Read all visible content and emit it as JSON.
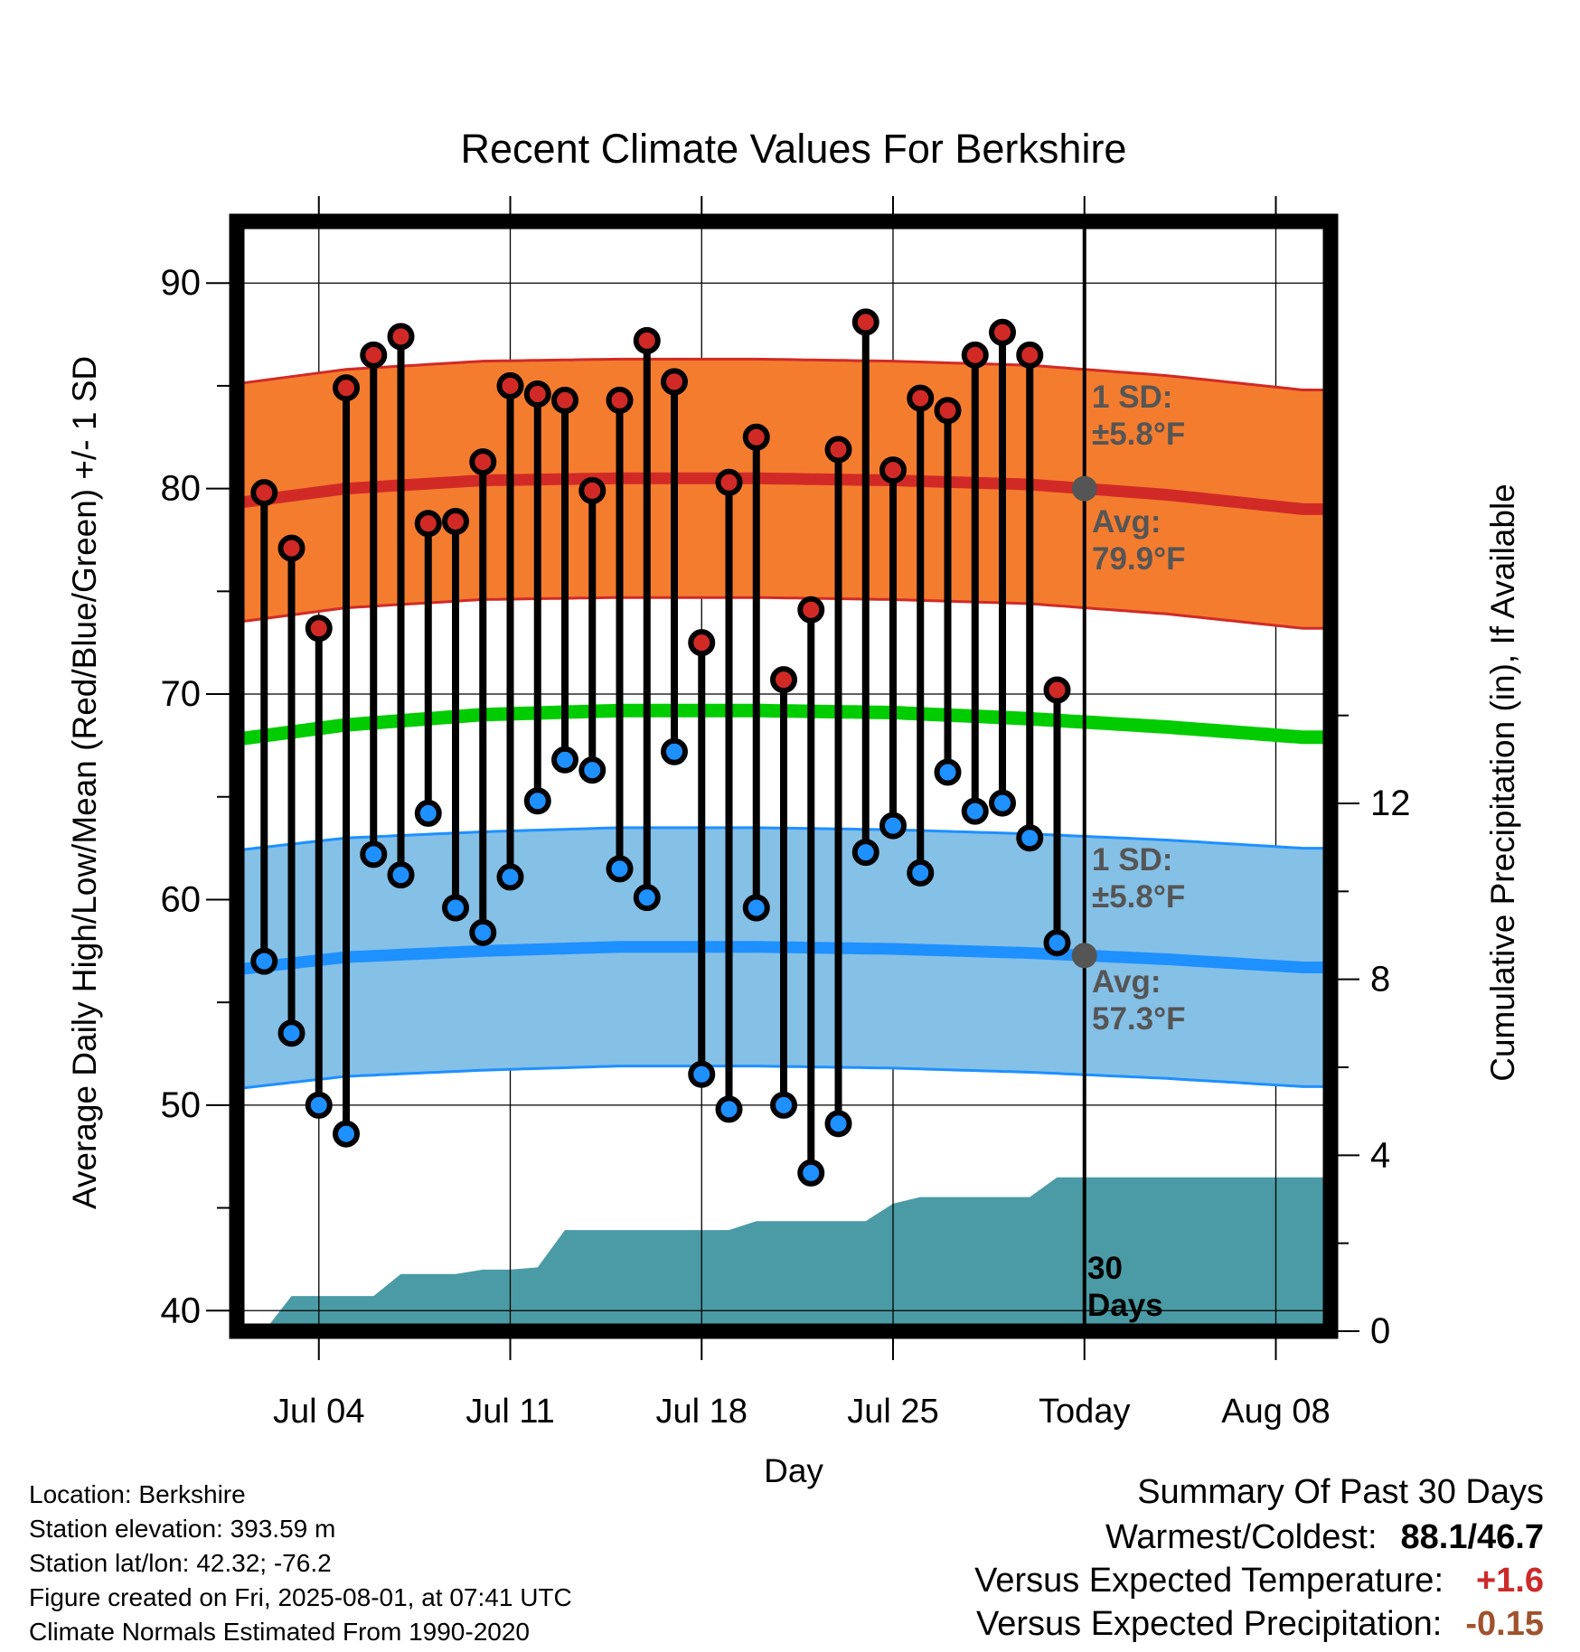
{
  "chart_data": {
    "type": "line",
    "title": "Recent Climate Values For Berkshire",
    "xlabel": "Day",
    "ylabel": "Average Daily High/Low/Mean (Red/Blue/Green) +/- 1 SD",
    "y2label": "Cumulative Precipitation (in), If Available",
    "ylim": [
      39,
      93
    ],
    "y2lim": [
      0,
      12
    ],
    "y_ticks": [
      "40",
      "50",
      "60",
      "70",
      "80",
      "90"
    ],
    "y2_ticks": [
      "0",
      "4",
      "8",
      "12"
    ],
    "x_tick_labels": [
      "Jul 04",
      "Jul 11",
      "Jul 18",
      "Jul 25",
      "Today",
      "Aug 08"
    ],
    "x_start_day": 2,
    "days": [
      2,
      3,
      4,
      5,
      6,
      7,
      8,
      9,
      10,
      11,
      12,
      13,
      14,
      15,
      16,
      17,
      18,
      19,
      20,
      21,
      22,
      23,
      24,
      25,
      26,
      27,
      28,
      29,
      30,
      31
    ],
    "daily_high": [
      79.8,
      77.1,
      73.2,
      84.9,
      86.5,
      87.4,
      78.3,
      78.4,
      81.3,
      85.0,
      84.6,
      84.3,
      79.9,
      84.3,
      87.2,
      85.2,
      72.5,
      80.3,
      82.5,
      70.7,
      74.1,
      81.9,
      88.1,
      80.9,
      84.4,
      83.8,
      86.5,
      87.6,
      86.5,
      70.2
    ],
    "daily_low": [
      57.0,
      53.5,
      50.0,
      48.6,
      62.2,
      61.2,
      64.2,
      59.6,
      58.4,
      61.1,
      64.8,
      66.8,
      66.3,
      61.5,
      60.1,
      67.2,
      51.5,
      49.8,
      59.6,
      50.0,
      46.7,
      49.1,
      62.3,
      63.6,
      61.3,
      66.2,
      64.3,
      64.7,
      63.0,
      57.9
    ],
    "today_day": 32,
    "normal_high": {
      "day": [
        1,
        5,
        10,
        15,
        20,
        25,
        30,
        35,
        40
      ],
      "avg": [
        79.3,
        80.0,
        80.4,
        80.5,
        80.5,
        80.4,
        80.2,
        79.7,
        79.0
      ],
      "sd": 5.8
    },
    "normal_low": {
      "day": [
        1,
        5,
        10,
        15,
        20,
        25,
        30,
        35,
        40
      ],
      "avg": [
        56.6,
        57.2,
        57.5,
        57.7,
        57.7,
        57.6,
        57.4,
        57.1,
        56.7
      ],
      "sd": 5.8
    },
    "normal_mean": {
      "day": [
        1,
        5,
        10,
        15,
        20,
        25,
        30,
        35,
        40
      ],
      "avg": [
        67.8,
        68.5,
        69.0,
        69.2,
        69.2,
        69.1,
        68.8,
        68.4,
        67.9
      ]
    },
    "cumulative_precip": {
      "day": [
        2,
        3,
        4,
        5,
        6,
        7,
        8,
        9,
        10,
        11,
        12,
        13,
        14,
        15,
        16,
        17,
        18,
        19,
        20,
        21,
        22,
        23,
        24,
        25,
        26,
        27,
        28,
        29,
        30,
        31,
        32,
        41
      ],
      "value": [
        0.0,
        0.8,
        0.8,
        0.8,
        0.8,
        1.3,
        1.3,
        1.3,
        1.4,
        1.4,
        1.45,
        2.3,
        2.3,
        2.3,
        2.3,
        2.3,
        2.3,
        2.3,
        2.5,
        2.5,
        2.5,
        2.5,
        2.5,
        2.9,
        3.05,
        3.05,
        3.05,
        3.05,
        3.05,
        3.5,
        3.5,
        3.5
      ]
    },
    "annotations": {
      "high_sd": [
        "1 SD:",
        "±5.8°F"
      ],
      "high_avg": [
        "Avg:",
        "79.9°F"
      ],
      "low_sd": [
        "1 SD:",
        "±5.8°F"
      ],
      "low_avg": [
        "Avg:",
        "57.3°F"
      ],
      "window": [
        "30",
        "Days"
      ]
    },
    "colors": {
      "high_band": "#f47c2f",
      "high_line": "#d12a26",
      "low_band": "#85c0e6",
      "low_line": "#1e90ff",
      "mean_line": "#00cc00",
      "precip": "#4a9ba5",
      "high_dot": "#d12a26",
      "low_dot": "#1e90ff",
      "annotation": "#555555"
    }
  },
  "info": {
    "location": "Location: Berkshire",
    "elevation": "Station elevation: 393.59 m",
    "latlon": "Station lat/lon: 42.32; -76.2",
    "created": "Figure created on Fri, 2025-08-01, at 07:41 UTC",
    "normals": "Climate Normals Estimated From 1990-2020"
  },
  "summary": {
    "title": "Summary Of Past 30 Days",
    "warm_cold_label": "Warmest/Coldest:",
    "warm_cold_value": "88.1/46.7",
    "temp_label": "Versus Expected Temperature:",
    "temp_value": "+1.6",
    "temp_color": "#cc2a2a",
    "precip_label": "Versus Expected Precipitation:",
    "precip_value": "-0.15",
    "precip_color": "#a0522d"
  }
}
